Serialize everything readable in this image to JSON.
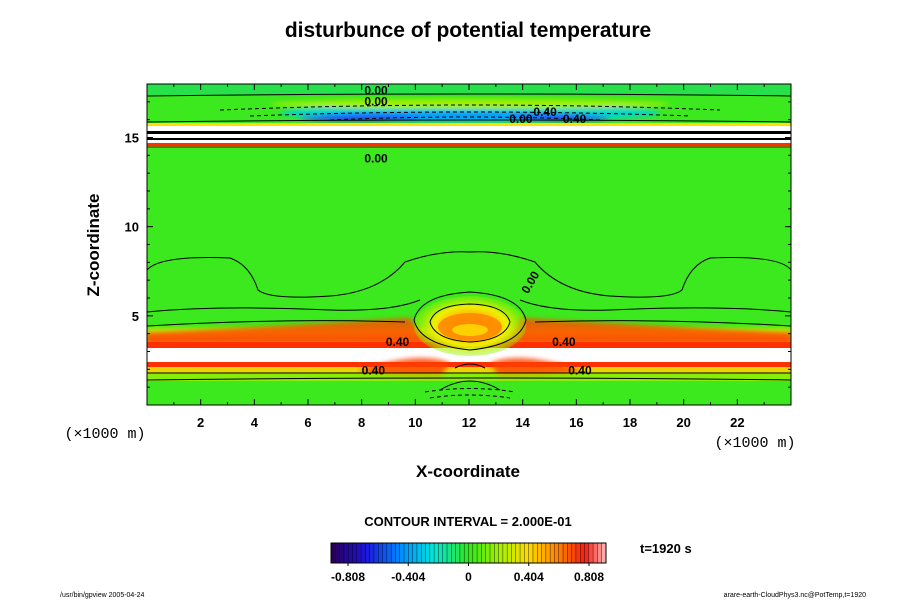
{
  "chart_data": {
    "type": "heatmap",
    "title": "disturbunce of potential temperature",
    "xlabel": "X-coordinate",
    "ylabel": "Z-coordinate",
    "x_unit": "(×1000 m)",
    "y_unit": "(×1000 m)",
    "xlim": [
      0,
      24
    ],
    "ylim": [
      0,
      18
    ],
    "x_ticks": [
      2,
      4,
      6,
      8,
      10,
      12,
      14,
      16,
      18,
      20,
      22
    ],
    "y_ticks": [
      5,
      10,
      15
    ],
    "contour_interval_label": "CONTOUR INTERVAL = 2.000E-01",
    "time_label": "t=1920 s",
    "colorbar": {
      "min": -0.808,
      "max": 0.808,
      "tick_values": [
        -0.808,
        -0.404,
        0,
        0.404,
        0.808
      ],
      "tick_labels": [
        "-0.808",
        "-0.404",
        "0",
        "0.404",
        "0.808"
      ]
    },
    "contour_labels": [
      {
        "text": "0.00",
        "x": 8.1,
        "z": 17.4
      },
      {
        "text": "0.00",
        "x": 8.1,
        "z": 16.8
      },
      {
        "text": "0.40",
        "x": 15.5,
        "z": 15.8
      },
      {
        "text": "0.40",
        "x": 14.4,
        "z": 16.2
      },
      {
        "text": "0.00",
        "x": 13.5,
        "z": 15.8
      },
      {
        "text": "0.00",
        "x": 8.1,
        "z": 13.6
      },
      {
        "text": "0.00",
        "x": 14.2,
        "z": 6.2
      },
      {
        "text": "0.40",
        "x": 8.9,
        "z": 3.3
      },
      {
        "text": "0.40",
        "x": 15.1,
        "z": 3.3
      },
      {
        "text": "0.40",
        "x": 8.0,
        "z": 1.7
      },
      {
        "text": "0.40",
        "x": 15.7,
        "z": 1.7
      }
    ],
    "features": [
      {
        "description": "warm bubble",
        "x": 12,
        "z": 4.5,
        "value": 0.6
      },
      {
        "description": "warm layer left",
        "x": 8,
        "z": 3.6,
        "value": 0.8
      },
      {
        "description": "warm layer right",
        "x": 16,
        "z": 3.6,
        "value": 0.8
      },
      {
        "description": "cold layer near top",
        "x": 12,
        "z": 16.0,
        "value": -0.4
      }
    ]
  },
  "footer": {
    "left": "/usr/bin/gpview 2005-04-24",
    "right": "arare-earth-CloudPhys3.nc@PotTemp,t=1920"
  }
}
